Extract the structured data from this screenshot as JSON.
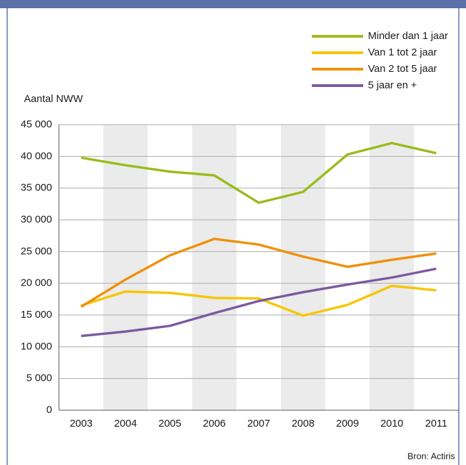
{
  "chart_data": {
    "type": "line",
    "y_label": "Aantal NWW",
    "source": "Bron: Actiris",
    "categories": [
      "2003",
      "2004",
      "2005",
      "2006",
      "2007",
      "2008",
      "2009",
      "2010",
      "2011"
    ],
    "series": [
      {
        "name": "Minder dan 1 jaar",
        "color": "#9bbb1c",
        "values": [
          39800,
          38600,
          37600,
          37000,
          32700,
          34400,
          40300,
          42100,
          40500
        ]
      },
      {
        "name": "Van 1 tot 2 jaar",
        "color": "#f7c600",
        "values": [
          16500,
          18700,
          18500,
          17700,
          17600,
          14900,
          16600,
          19600,
          18900
        ]
      },
      {
        "name": "Van 2 tot 5 jaar",
        "color": "#f0900a",
        "values": [
          16300,
          20600,
          24400,
          27000,
          26100,
          24200,
          22600,
          23700,
          24700
        ]
      },
      {
        "name": "5 jaar en +",
        "color": "#7b5aa0",
        "values": [
          11700,
          12400,
          13300,
          15300,
          17200,
          18600,
          19800,
          20900,
          22300
        ]
      }
    ],
    "ylim": [
      0,
      45000
    ],
    "yticks": [
      0,
      {
        "value": 5000,
        "label": "5 000"
      },
      {
        "value": 10000,
        "label": "10 000"
      },
      {
        "value": 15000,
        "label": "15 000"
      },
      {
        "value": 20000,
        "label": "20 000"
      },
      {
        "value": 25000,
        "label": "25 000"
      },
      {
        "value": 30000,
        "label": "30 000"
      },
      {
        "value": 35000,
        "label": "35 000"
      },
      {
        "value": 40000,
        "label": "40 000"
      },
      {
        "value": 45000,
        "label": "45 000"
      }
    ],
    "grid": true,
    "legend": "upper right"
  }
}
